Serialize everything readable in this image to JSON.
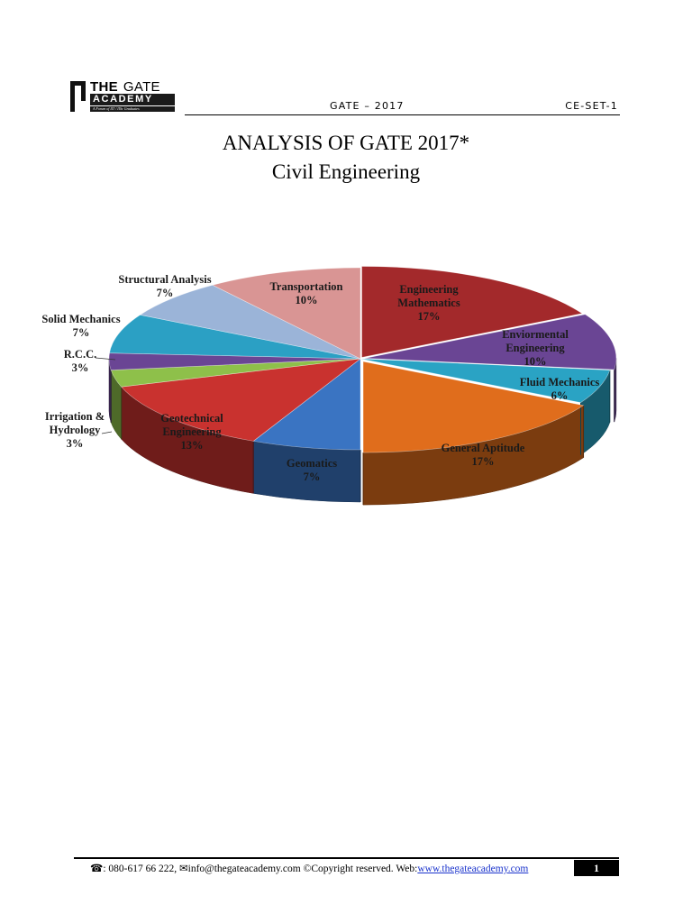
{
  "header": {
    "logo_the": "THE",
    "logo_gate": "GATE",
    "logo_academy": "ACADEMY",
    "logo_tagline": "A Forum of IIT / IISc Graduates",
    "center": "GATE – 2017",
    "right": "CE-SET-1"
  },
  "title": {
    "line1": "ANALYSIS OF GATE 2017*",
    "line2": "Civil Engineering"
  },
  "chart_data": {
    "type": "pie",
    "style": "3d-exploded",
    "unit": "%",
    "slices": [
      {
        "label": "Engineering Mathematics",
        "value": 17,
        "color": "#a3292b"
      },
      {
        "label": "Enviormental Engineering",
        "value": 10,
        "color": "#6a4594"
      },
      {
        "label": "Fluid Mechanics",
        "value": 6,
        "color": "#2aa3c4"
      },
      {
        "label": "General Aptitude",
        "value": 17,
        "color": "#e06d1c"
      },
      {
        "label": "Geomatics",
        "value": 7,
        "color": "#3a74c2"
      },
      {
        "label": "Geotechnical Engineering",
        "value": 13,
        "color": "#c9322f"
      },
      {
        "label": "Irrigation & Hydrology",
        "value": 3,
        "color": "#8ec04a"
      },
      {
        "label": "R.C.C.",
        "value": 3,
        "color": "#6a4594"
      },
      {
        "label": "Solid Mechanics",
        "value": 7,
        "color": "#2ba0c4"
      },
      {
        "label": "Structural Analysis",
        "value": 7,
        "color": "#9bb4d8"
      },
      {
        "label": "Transportation",
        "value": 10,
        "color": "#d99594"
      }
    ],
    "label_lines": [
      {
        "slice": 0,
        "lines": [
          "Engineering",
          "Mathematics",
          "17%"
        ]
      },
      {
        "slice": 1,
        "lines": [
          "Enviormental",
          "Engineering",
          "10%"
        ]
      },
      {
        "slice": 2,
        "lines": [
          "Fluid Mechanics",
          "6%"
        ]
      },
      {
        "slice": 3,
        "lines": [
          "General Aptitude",
          "17%"
        ]
      },
      {
        "slice": 4,
        "lines": [
          "Geomatics",
          "7%"
        ]
      },
      {
        "slice": 5,
        "lines": [
          "Geotechnical",
          "Engineering",
          "13%"
        ]
      },
      {
        "slice": 6,
        "lines": [
          "Irrigation &",
          "Hydrology",
          "3%"
        ]
      },
      {
        "slice": 7,
        "lines": [
          "R.C.C.",
          "3%"
        ]
      },
      {
        "slice": 8,
        "lines": [
          "Solid Mechanics",
          "7%"
        ]
      },
      {
        "slice": 9,
        "lines": [
          "Structural Analysis",
          "7%"
        ]
      },
      {
        "slice": 10,
        "lines": [
          "Transportation",
          "10%"
        ]
      }
    ]
  },
  "footer": {
    "phone_icon": "phone-icon",
    "phone": ": 080-617 66 222,",
    "mail_icon": "mail-icon",
    "email": "info@thegateacademy.com",
    "copyright": " ©Copyright reserved. Web:",
    "web": "www.thegateacademy.com",
    "page": "1"
  }
}
